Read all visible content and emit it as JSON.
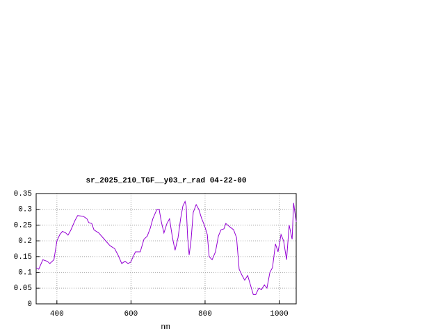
{
  "chart_data": {
    "type": "line",
    "title": "sr_2025_210_TGF__y03_r_rad 04-22-00",
    "x_label": "nm",
    "x": [
      344,
      351,
      362,
      374,
      381,
      392,
      400,
      408,
      415,
      424,
      430,
      438,
      449,
      456,
      471,
      481,
      486,
      494,
      500,
      513,
      528,
      543,
      556,
      565,
      575,
      584,
      592,
      599,
      612,
      625,
      635,
      644,
      652,
      659,
      670,
      676,
      682,
      689,
      697,
      704,
      712,
      719,
      727,
      734,
      740,
      746,
      749,
      753,
      757,
      762,
      768,
      776,
      783,
      791,
      798,
      806,
      811,
      819,
      828,
      836,
      843,
      851,
      856,
      866,
      877,
      885,
      892,
      900,
      907,
      915,
      922,
      930,
      937,
      945,
      952,
      960,
      967,
      975,
      982,
      990,
      997,
      1005,
      1012,
      1020,
      1027,
      1035,
      1039,
      1046
    ],
    "series": [
      {
        "name": "sr_2025_210_TGF__y03_r_rad",
        "color": "#9400d3",
        "values": [
          0.115,
          0.11,
          0.14,
          0.135,
          0.128,
          0.14,
          0.2,
          0.22,
          0.23,
          0.225,
          0.218,
          0.235,
          0.265,
          0.28,
          0.278,
          0.27,
          0.258,
          0.255,
          0.235,
          0.225,
          0.205,
          0.185,
          0.175,
          0.155,
          0.128,
          0.135,
          0.128,
          0.132,
          0.165,
          0.165,
          0.205,
          0.215,
          0.24,
          0.27,
          0.3,
          0.3,
          0.26,
          0.225,
          0.255,
          0.27,
          0.21,
          0.17,
          0.21,
          0.27,
          0.31,
          0.325,
          0.31,
          0.21,
          0.155,
          0.2,
          0.29,
          0.315,
          0.3,
          0.27,
          0.25,
          0.22,
          0.15,
          0.14,
          0.165,
          0.215,
          0.235,
          0.238,
          0.255,
          0.245,
          0.235,
          0.21,
          0.11,
          0.09,
          0.075,
          0.09,
          0.062,
          0.03,
          0.03,
          0.05,
          0.045,
          0.06,
          0.05,
          0.1,
          0.115,
          0.19,
          0.165,
          0.22,
          0.2,
          0.14,
          0.25,
          0.205,
          0.32,
          0.26
        ]
      }
    ],
    "xlim": [
      344,
      1046
    ],
    "xticks": [
      400,
      600,
      800,
      1000
    ],
    "ylim": [
      0,
      0.35
    ],
    "yticks": [
      0,
      0.05,
      0.1,
      0.15,
      0.2,
      0.25,
      0.3,
      0.35
    ],
    "grid": true
  }
}
